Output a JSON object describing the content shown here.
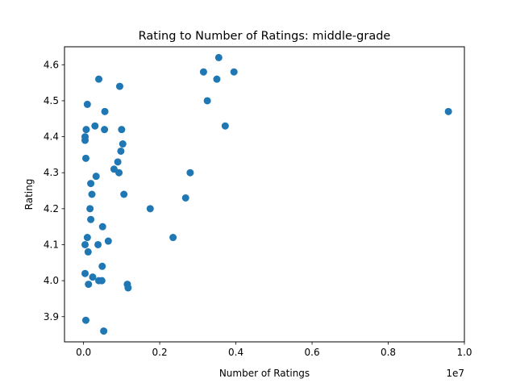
{
  "chart_data": {
    "type": "scatter",
    "title": "Rating to Number of Ratings: middle-grade",
    "xlabel": "Number of Ratings",
    "ylabel": "Rating",
    "x_offset_label": "1e7",
    "xlim": [
      -0.05,
      1.0
    ],
    "ylim": [
      3.83,
      4.65
    ],
    "xticks": [
      0.0,
      0.2,
      0.4,
      0.6,
      0.8,
      1.0
    ],
    "xtick_labels": [
      "0.0",
      "0.2",
      "0.4",
      "0.6",
      "0.8",
      "1.0"
    ],
    "yticks": [
      3.9,
      4.0,
      4.1,
      4.2,
      4.3,
      4.4,
      4.5,
      4.6
    ],
    "ytick_labels": [
      "3.9",
      "4.0",
      "4.1",
      "4.2",
      "4.3",
      "4.4",
      "4.5",
      "4.6"
    ],
    "grid": false,
    "marker_color": "#1f77b4",
    "points": [
      {
        "x": 0.004,
        "y": 4.39
      },
      {
        "x": 0.004,
        "y": 4.4
      },
      {
        "x": 0.006,
        "y": 4.34
      },
      {
        "x": 0.007,
        "y": 4.42
      },
      {
        "x": 0.004,
        "y": 4.1
      },
      {
        "x": 0.004,
        "y": 4.02
      },
      {
        "x": 0.006,
        "y": 3.89
      },
      {
        "x": 0.01,
        "y": 4.12
      },
      {
        "x": 0.012,
        "y": 4.08
      },
      {
        "x": 0.013,
        "y": 3.99
      },
      {
        "x": 0.01,
        "y": 4.49
      },
      {
        "x": 0.017,
        "y": 4.2
      },
      {
        "x": 0.019,
        "y": 4.27
      },
      {
        "x": 0.019,
        "y": 4.17
      },
      {
        "x": 0.022,
        "y": 4.24
      },
      {
        "x": 0.024,
        "y": 4.01
      },
      {
        "x": 0.03,
        "y": 4.43
      },
      {
        "x": 0.033,
        "y": 4.29
      },
      {
        "x": 0.038,
        "y": 4.1
      },
      {
        "x": 0.04,
        "y": 4.0
      },
      {
        "x": 0.04,
        "y": 4.56
      },
      {
        "x": 0.048,
        "y": 4.0
      },
      {
        "x": 0.049,
        "y": 4.04
      },
      {
        "x": 0.05,
        "y": 4.15
      },
      {
        "x": 0.053,
        "y": 3.86
      },
      {
        "x": 0.055,
        "y": 4.42
      },
      {
        "x": 0.056,
        "y": 4.47
      },
      {
        "x": 0.065,
        "y": 4.11
      },
      {
        "x": 0.08,
        "y": 4.31
      },
      {
        "x": 0.09,
        "y": 4.33
      },
      {
        "x": 0.093,
        "y": 4.3
      },
      {
        "x": 0.095,
        "y": 4.54
      },
      {
        "x": 0.098,
        "y": 4.36
      },
      {
        "x": 0.1,
        "y": 4.42
      },
      {
        "x": 0.103,
        "y": 4.38
      },
      {
        "x": 0.106,
        "y": 4.24
      },
      {
        "x": 0.115,
        "y": 3.99
      },
      {
        "x": 0.117,
        "y": 3.98
      },
      {
        "x": 0.175,
        "y": 4.2
      },
      {
        "x": 0.235,
        "y": 4.12
      },
      {
        "x": 0.268,
        "y": 4.23
      },
      {
        "x": 0.28,
        "y": 4.3
      },
      {
        "x": 0.315,
        "y": 4.58
      },
      {
        "x": 0.325,
        "y": 4.5
      },
      {
        "x": 0.35,
        "y": 4.56
      },
      {
        "x": 0.355,
        "y": 4.62
      },
      {
        "x": 0.372,
        "y": 4.43
      },
      {
        "x": 0.395,
        "y": 4.58
      },
      {
        "x": 0.958,
        "y": 4.47
      }
    ]
  }
}
